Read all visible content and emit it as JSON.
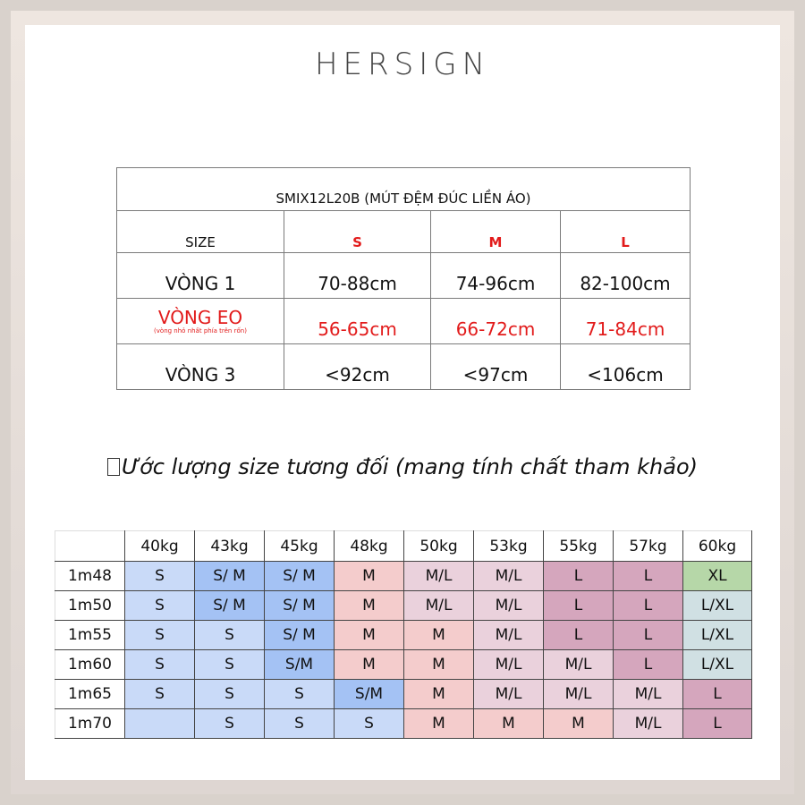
{
  "brand": {
    "logo_text": "HERSIGN"
  },
  "size_table": {
    "title": "SMIX12L20B (MÚT ĐỆM ĐÚC LIỀN ÁO)",
    "header_label": "SIZE",
    "sizes": [
      "S",
      "M",
      "L"
    ],
    "rows": [
      {
        "label": "VÒNG 1",
        "note": "",
        "values": [
          "70-88cm",
          "74-96cm",
          "82-100cm"
        ],
        "highlight": false
      },
      {
        "label": "VÒNG EO",
        "note": "(vòng nhỏ nhất phía trên rốn)",
        "values": [
          "56-65cm",
          "66-72cm",
          "71-84cm"
        ],
        "highlight": true
      },
      {
        "label": "VÒNG 3",
        "note": "",
        "values": [
          "<92cm",
          "<97cm",
          "<106cm"
        ],
        "highlight": false
      }
    ],
    "colors": {
      "highlight": "#e21b1b",
      "text": "#111111"
    }
  },
  "estimate_note": "Ước lượng size tương đối (mang tính chất tham khảo)",
  "estimate_table": {
    "weights": [
      "40kg",
      "43kg",
      "45kg",
      "48kg",
      "50kg",
      "53kg",
      "55kg",
      "57kg",
      "60kg"
    ],
    "heights": [
      "1m48",
      "1m50",
      "1m55",
      "1m60",
      "1m65",
      "1m70"
    ],
    "cells": [
      [
        "S",
        "S/ M",
        "S/ M",
        "M",
        "M/L",
        "M/L",
        "L",
        "L",
        "XL"
      ],
      [
        "S",
        "S/ M",
        "S/ M",
        "M",
        "M/L",
        "M/L",
        "L",
        "L",
        "L/XL"
      ],
      [
        "S",
        "S",
        "S/ M",
        "M",
        "M",
        "M/L",
        "L",
        "L",
        "L/XL"
      ],
      [
        "S",
        "S",
        "S/M",
        "M",
        "M",
        "M/L",
        "M/L",
        "L",
        "L/XL"
      ],
      [
        "S",
        "S",
        "S",
        "S/M",
        "M",
        "M/L",
        "M/L",
        "M/L",
        "L"
      ],
      [
        "",
        "S",
        "S",
        "S",
        "M",
        "M",
        "M",
        "M/L",
        "L"
      ]
    ],
    "colors": [
      [
        "#c9daf8",
        "#a4c2f4",
        "#a4c2f4",
        "#f4cccc",
        "#ead1dc",
        "#ead1dc",
        "#d5a6bd",
        "#d5a6bd",
        "#b6d7a8"
      ],
      [
        "#c9daf8",
        "#a4c2f4",
        "#a4c2f4",
        "#f4cccc",
        "#ead1dc",
        "#ead1dc",
        "#d5a6bd",
        "#d5a6bd",
        "#d0e0e3"
      ],
      [
        "#c9daf8",
        "#c9daf8",
        "#a4c2f4",
        "#f4cccc",
        "#f4cccc",
        "#ead1dc",
        "#d5a6bd",
        "#d5a6bd",
        "#d0e0e3"
      ],
      [
        "#c9daf8",
        "#c9daf8",
        "#a4c2f4",
        "#f4cccc",
        "#f4cccc",
        "#ead1dc",
        "#ead1dc",
        "#d5a6bd",
        "#d0e0e3"
      ],
      [
        "#c9daf8",
        "#c9daf8",
        "#c9daf8",
        "#a4c2f4",
        "#f4cccc",
        "#ead1dc",
        "#ead1dc",
        "#ead1dc",
        "#d5a6bd"
      ],
      [
        "#c9daf8",
        "#c9daf8",
        "#c9daf8",
        "#c9daf8",
        "#f4cccc",
        "#f4cccc",
        "#f4cccc",
        "#ead1dc",
        "#d5a6bd"
      ]
    ]
  }
}
